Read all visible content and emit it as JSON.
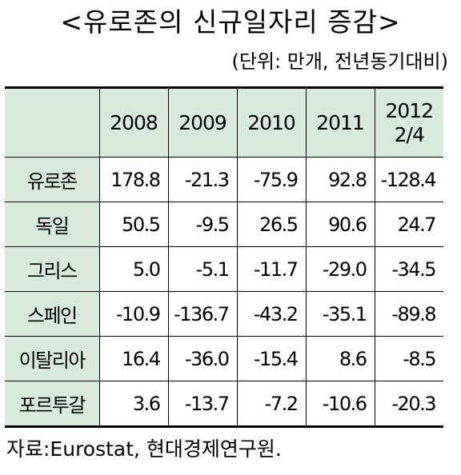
{
  "title": "<유로존의 신규일자리 증감>",
  "unit": "(단위: 만개, 전년동기대비)",
  "table": {
    "headers": [
      "2008",
      "2009",
      "2010",
      "2011",
      "2012\n2/4"
    ],
    "header_lines": [
      [
        "2008"
      ],
      [
        "2009"
      ],
      [
        "2010"
      ],
      [
        "2011"
      ],
      [
        "2012",
        "2/4"
      ]
    ],
    "rows": [
      {
        "label": "유로존",
        "values": [
          "178.8",
          "-21.3",
          "-75.9",
          "92.8",
          "-128.4"
        ]
      },
      {
        "label": "독일",
        "values": [
          "50.5",
          "-9.5",
          "26.5",
          "90.6",
          "24.7"
        ]
      },
      {
        "label": "그리스",
        "values": [
          "5.0",
          "-5.1",
          "-11.7",
          "-29.0",
          "-34.5"
        ]
      },
      {
        "label": "스페인",
        "values": [
          "-10.9",
          "-136.7",
          "-43.2",
          "-35.1",
          "-89.8"
        ]
      },
      {
        "label": "이탈리아",
        "values": [
          "16.4",
          "-36.0",
          "-15.4",
          "8.6",
          "-8.5"
        ]
      },
      {
        "label": "포르투갈",
        "values": [
          "3.6",
          "-13.7",
          "-7.2",
          "-10.6",
          "-20.3"
        ]
      }
    ]
  },
  "colors": {
    "header_fill": "#d8eadc",
    "border": "#000000"
  },
  "source": "자료:Eurostat, 현대경제연구원."
}
